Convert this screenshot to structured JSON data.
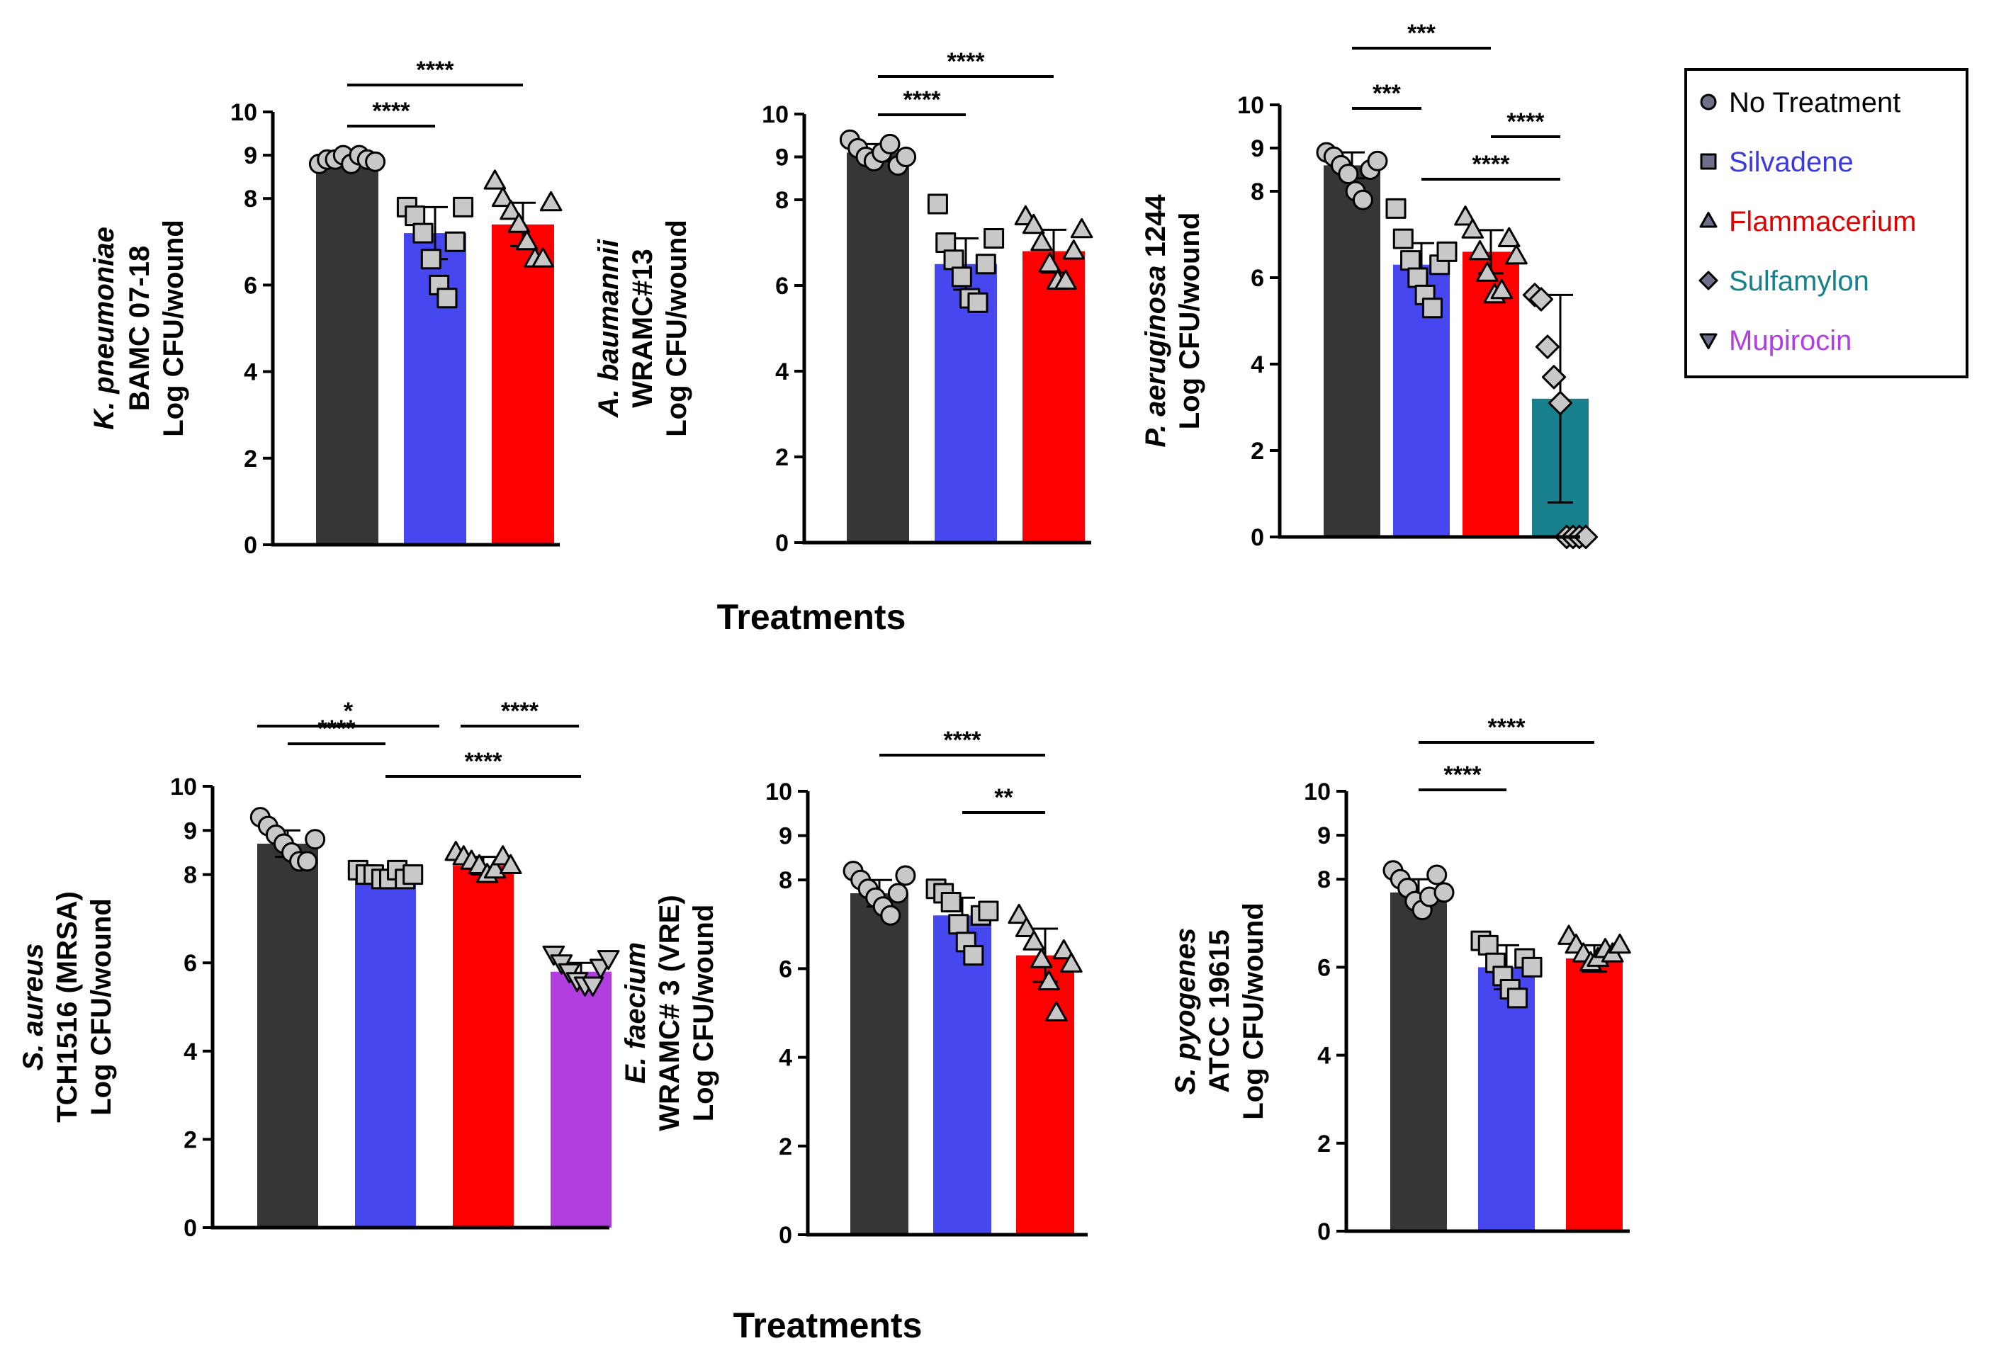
{
  "colors": {
    "No Treatment": "#363636",
    "Silvadene": "#4747f0",
    "Flammacerium": "#ff0000",
    "Sulfamylon": "#187f8c",
    "Mupirocin": "#b23ee0"
  },
  "x_titles": [
    "Treatments",
    "Treatments"
  ],
  "legend": {
    "items": [
      {
        "label": "No Treatment",
        "marker": "circle",
        "text_color": "#000000"
      },
      {
        "label": "Silvadene",
        "marker": "square",
        "text_color": "#3a3ae0"
      },
      {
        "label": "Flammacerium",
        "marker": "triangle",
        "text_color": "#e00000"
      },
      {
        "label": "Sulfamylon",
        "marker": "diamond",
        "text_color": "#187f8c"
      },
      {
        "label": "Mupirocin",
        "marker": "triangle-down",
        "text_color": "#b23ee0"
      }
    ]
  },
  "chart_data": [
    {
      "type": "bar",
      "title": "",
      "ylabel": [
        "K. pneumoniae",
        "BAMC 07-18",
        "Log CFU/wound"
      ],
      "ylabel_italic_line": 0,
      "ylim": [
        0,
        10
      ],
      "yticks": [
        "0",
        "2",
        "4",
        "6",
        "8",
        "9",
        "10"
      ],
      "categories": [
        "No Treatment",
        "Silvadene",
        "Flammacerium"
      ],
      "values": [
        8.9,
        7.2,
        7.4
      ],
      "errors": [
        0.1,
        0.6,
        0.5
      ],
      "points": [
        [
          8.8,
          8.9,
          8.9,
          9.0,
          8.8,
          9.0,
          8.9,
          8.85
        ],
        [
          7.8,
          7.6,
          7.2,
          6.6,
          6.0,
          5.7,
          7.0,
          7.8
        ],
        [
          8.4,
          8.0,
          7.7,
          7.4,
          7.0,
          6.6,
          6.6,
          7.9
        ]
      ],
      "comparisons": [
        {
          "from": 0,
          "to": 1,
          "label": "****"
        },
        {
          "from": 0,
          "to": 2,
          "label": "****"
        }
      ]
    },
    {
      "type": "bar",
      "title": "",
      "ylabel": [
        "A. baumannii",
        "WRAMC#13",
        "Log CFU/wound"
      ],
      "ylabel_italic_line": 0,
      "ylim": [
        0,
        10
      ],
      "yticks": [
        "0",
        "2",
        "4",
        "6",
        "8",
        "9",
        "10"
      ],
      "categories": [
        "No Treatment",
        "Silvadene",
        "Flammacerium"
      ],
      "values": [
        9.1,
        6.5,
        6.8
      ],
      "errors": [
        0.2,
        0.6,
        0.5
      ],
      "points": [
        [
          9.4,
          9.2,
          9.0,
          8.9,
          9.1,
          9.3,
          8.8,
          9.0
        ],
        [
          7.9,
          7.0,
          6.6,
          6.2,
          5.7,
          5.6,
          6.5,
          7.1
        ],
        [
          7.6,
          7.4,
          7.0,
          6.5,
          6.1,
          6.1,
          6.8,
          7.3
        ]
      ],
      "comparisons": [
        {
          "from": 0,
          "to": 1,
          "label": "****"
        },
        {
          "from": 0,
          "to": 2,
          "label": "****"
        }
      ]
    },
    {
      "type": "bar",
      "title": "",
      "ylabel": [
        "P. aeruginosa 1244",
        "Log CFU/wound"
      ],
      "ylabel_italic_line": 0,
      "ylim": [
        0,
        10
      ],
      "yticks": [
        "0",
        "2",
        "4",
        "6",
        "8",
        "9",
        "10"
      ],
      "categories": [
        "No Treatment",
        "Silvadene",
        "Flammacerium",
        "Sulfamylon"
      ],
      "values": [
        8.6,
        6.3,
        6.6,
        3.2
      ],
      "errors": [
        0.3,
        0.5,
        0.5,
        2.4
      ],
      "points": [
        [
          8.9,
          8.8,
          8.6,
          8.4,
          8.0,
          7.8,
          8.5,
          8.7
        ],
        [
          7.6,
          6.9,
          6.4,
          6.0,
          5.6,
          5.3,
          6.3,
          6.6
        ],
        [
          7.4,
          7.1,
          6.6,
          6.1,
          5.6,
          5.7,
          6.9,
          6.5
        ],
        [
          5.6,
          5.5,
          4.4,
          3.7,
          3.1,
          0,
          0,
          0,
          0
        ]
      ],
      "comparisons": [
        {
          "from": 0,
          "to": 1,
          "label": "***"
        },
        {
          "from": 0,
          "to": 2,
          "label": "***"
        },
        {
          "from": 2,
          "to": 3,
          "label": "****"
        },
        {
          "from": 1,
          "to": 3,
          "label": "****"
        }
      ]
    },
    {
      "type": "bar",
      "title": "",
      "ylabel": [
        "S. aureus",
        "TCH1516 (MRSA)",
        "Log CFU/wound"
      ],
      "ylabel_italic_line": 0,
      "ylim": [
        0,
        10
      ],
      "yticks": [
        "0",
        "2",
        "4",
        "6",
        "8",
        "9",
        "10"
      ],
      "categories": [
        "No Treatment",
        "Silvadene",
        "Flammacerium",
        "Mupirocin"
      ],
      "values": [
        8.7,
        7.9,
        8.2,
        5.8
      ],
      "errors": [
        0.3,
        0.2,
        0.2,
        0.2
      ],
      "points": [
        [
          9.3,
          9.1,
          8.9,
          8.7,
          8.5,
          8.3,
          8.3,
          8.8
        ],
        [
          8.1,
          8.0,
          8.0,
          7.9,
          7.9,
          8.1,
          7.9,
          8.0
        ],
        [
          8.5,
          8.4,
          8.3,
          8.2,
          8.0,
          8.1,
          8.4,
          8.2
        ],
        [
          6.2,
          6.0,
          5.8,
          5.6,
          5.5,
          5.5,
          5.9,
          6.1
        ]
      ],
      "comparisons": [
        {
          "from": 0,
          "to": 1,
          "label": "****"
        },
        {
          "from": 0,
          "to": 2,
          "label": "*"
        },
        {
          "from": 2,
          "to": 3,
          "label": "****"
        },
        {
          "from": 1,
          "to": 3,
          "label": "****"
        }
      ]
    },
    {
      "type": "bar",
      "title": "",
      "ylabel": [
        "E. faecium",
        "WRAMC# 3 (VRE)",
        "Log CFU/wound"
      ],
      "ylabel_italic_line": 0,
      "ylim": [
        0,
        10
      ],
      "yticks": [
        "0",
        "2",
        "4",
        "6",
        "8",
        "9",
        "10"
      ],
      "categories": [
        "No Treatment",
        "Silvadene",
        "Flammacerium"
      ],
      "values": [
        7.7,
        7.2,
        6.3
      ],
      "errors": [
        0.3,
        0.4,
        0.6
      ],
      "points": [
        [
          8.2,
          8.0,
          7.8,
          7.6,
          7.4,
          7.2,
          7.7,
          8.1
        ],
        [
          7.8,
          7.7,
          7.5,
          7.0,
          6.6,
          6.3,
          7.2,
          7.3
        ],
        [
          7.2,
          6.9,
          6.6,
          6.2,
          5.7,
          5.0,
          6.4,
          6.1
        ]
      ],
      "comparisons": [
        {
          "from": 0,
          "to": 2,
          "label": "****"
        },
        {
          "from": 1,
          "to": 2,
          "label": "**"
        }
      ]
    },
    {
      "type": "bar",
      "title": "",
      "ylabel": [
        "S. pyogenes",
        "ATCC 19615",
        "Log CFU/wound"
      ],
      "ylabel_italic_line": 0,
      "ylim": [
        0,
        10
      ],
      "yticks": [
        "0",
        "2",
        "4",
        "6",
        "8",
        "9",
        "10"
      ],
      "categories": [
        "No Treatment",
        "Silvadene",
        "Flammacerium"
      ],
      "values": [
        7.7,
        6.0,
        6.2
      ],
      "errors": [
        0.3,
        0.5,
        0.3
      ],
      "points": [
        [
          8.2,
          8.0,
          7.8,
          7.5,
          7.3,
          7.6,
          8.1,
          7.7
        ],
        [
          6.6,
          6.5,
          6.1,
          5.8,
          5.5,
          5.3,
          6.2,
          6.0
        ],
        [
          6.7,
          6.5,
          6.3,
          6.1,
          6.2,
          6.4,
          6.3,
          6.5
        ]
      ],
      "comparisons": [
        {
          "from": 0,
          "to": 1,
          "label": "****"
        },
        {
          "from": 0,
          "to": 2,
          "label": "****"
        }
      ]
    }
  ]
}
